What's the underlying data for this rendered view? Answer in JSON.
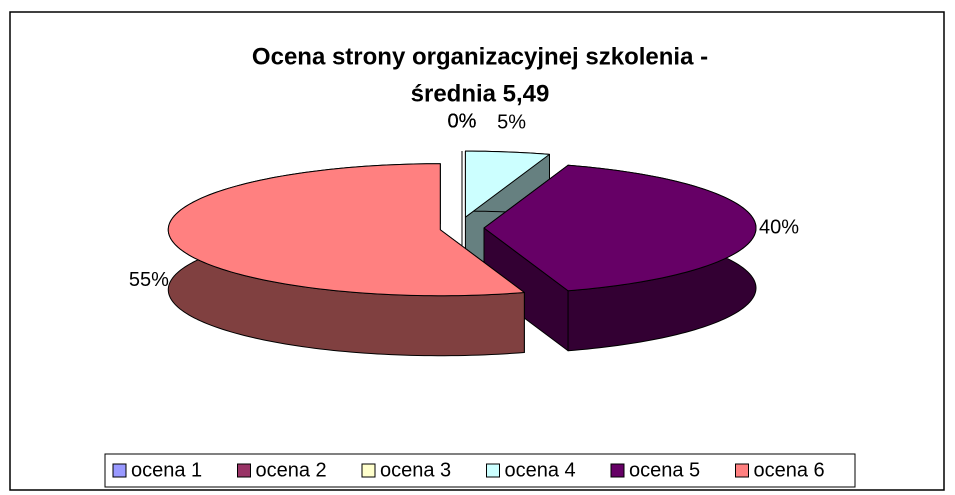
{
  "chart_data": {
    "type": "pie3d",
    "title": [
      "Ocena strony organizacyjnej szkolenia -",
      "średnia 5,49"
    ],
    "categories": [
      "ocena 1",
      "ocena 2",
      "ocena 3",
      "ocena 4",
      "ocena 5",
      "ocena 6"
    ],
    "values": [
      0,
      0,
      0,
      5,
      40,
      55
    ],
    "value_labels": [
      "0%",
      "0%",
      "0%",
      "5%",
      "40%",
      "55%"
    ],
    "colors": [
      "#9999ff",
      "#993366",
      "#ffffcc",
      "#ccffff",
      "#660066",
      "#ff8080"
    ],
    "legend": "bottom"
  }
}
